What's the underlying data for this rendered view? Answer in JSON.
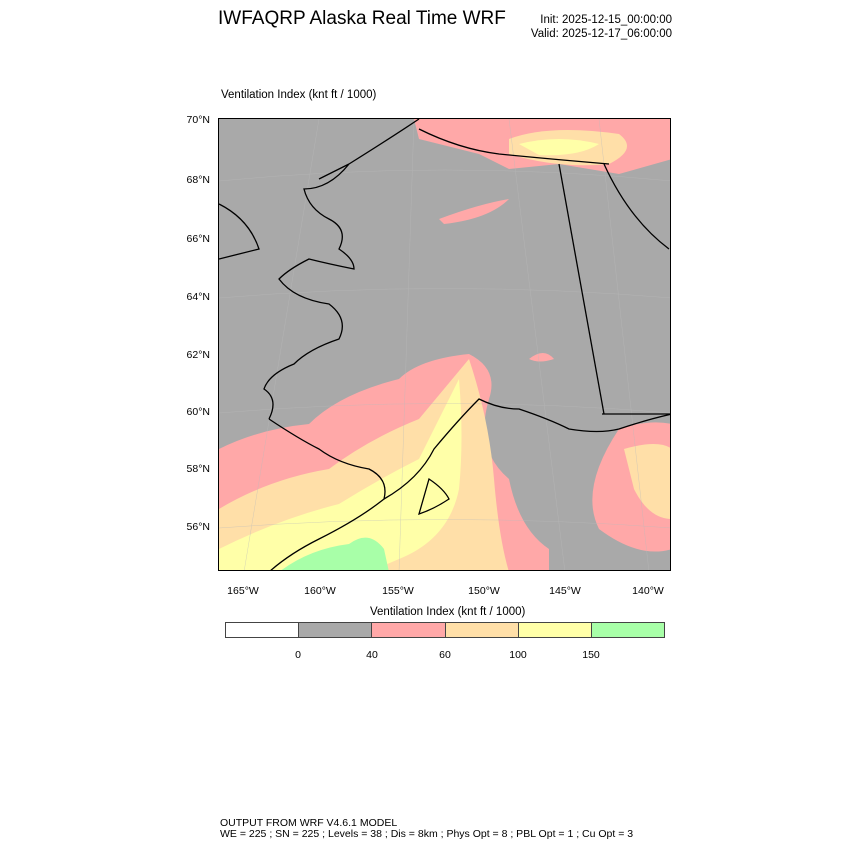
{
  "header": {
    "title": "IWFAQRP Alaska Real Time WRF",
    "init": "Init: 2025-12-15_00:00:00",
    "valid": "Valid: 2025-12-17_06:00:00"
  },
  "plot": {
    "subtitle": "Ventilation Index   (knt ft / 1000)",
    "lat_labels": [
      "70°N",
      "68°N",
      "66°N",
      "64°N",
      "62°N",
      "60°N",
      "58°N",
      "56°N"
    ],
    "lon_labels": [
      "165°W",
      "160°W",
      "155°W",
      "150°W",
      "145°W",
      "140°W"
    ]
  },
  "colorbar": {
    "title": "Ventilation Index  (knt ft / 1000)",
    "levels": [
      "0",
      "40",
      "60",
      "100",
      "150"
    ],
    "colors": [
      "#ffffff",
      "#a9a9a9",
      "#ffa8a8",
      "#ffdfa8",
      "#ffffa8",
      "#a8ffa8"
    ]
  },
  "footer": {
    "line1": "OUTPUT FROM WRF V4.6.1 MODEL",
    "line2": "WE = 225 ; SN = 225 ; Levels = 38 ; Dis = 8km ; Phys Opt = 8 ; PBL Opt = 1 ; Cu Opt = 3"
  }
}
